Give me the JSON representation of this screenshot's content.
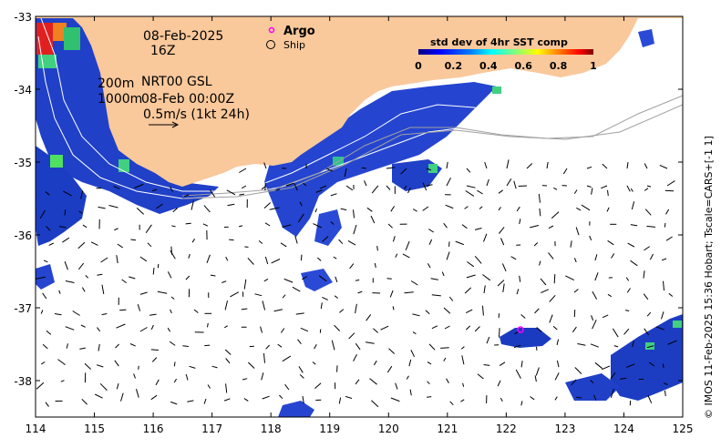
{
  "map": {
    "lon_range": [
      114,
      125
    ],
    "lat_range": [
      -38.5,
      -33
    ],
    "lon_ticks": [
      "114",
      "115",
      "116",
      "117",
      "118",
      "119",
      "120",
      "121",
      "122",
      "123",
      "124",
      "125"
    ],
    "lat_ticks": [
      "-33",
      "-34",
      "-35",
      "-36",
      "-37",
      "-38"
    ],
    "land_color": "#f9c89b",
    "ocean_color": "#ffffff"
  },
  "annotations": {
    "date": "08-Feb-2025",
    "hour": "16Z",
    "depth_200": "200m",
    "depth_1000": "1000m",
    "model_label": "NRT00 GSL",
    "model_time": "08-Feb 00:00Z",
    "scale_label": "0.5m/s (1kt 24h)"
  },
  "legend": {
    "argo_label": "Argo",
    "ship_label": "Ship",
    "argo_color": "#ff00ff"
  },
  "colorbar": {
    "title": "std dev of 4hr SST comp",
    "ticks": [
      "0",
      "0.2",
      "0.4",
      "0.6",
      "0.8",
      "1"
    ],
    "range": [
      0,
      1
    ],
    "colors": [
      "#00007f",
      "#0000ff",
      "#007fff",
      "#00ffff",
      "#7fff7f",
      "#ffff00",
      "#ff7f00",
      "#ff0000",
      "#7f0000"
    ]
  },
  "side_text": "© IMOS 11-Feb-2025 15:36 Hobart; Tscale=CARS+[-1 1]",
  "argo_float": {
    "lon": 122.25,
    "lat": -37.3
  }
}
